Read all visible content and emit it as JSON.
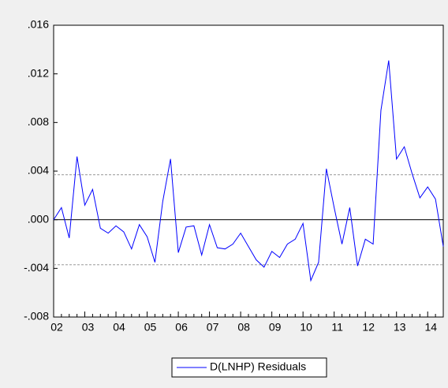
{
  "chart_data": {
    "type": "line",
    "categories": [
      "02",
      null,
      null,
      null,
      "03",
      null,
      null,
      null,
      "04",
      null,
      null,
      null,
      "05",
      null,
      null,
      null,
      "06",
      null,
      null,
      null,
      "07",
      null,
      null,
      null,
      "08",
      null,
      null,
      null,
      "09",
      null,
      null,
      null,
      "10",
      null,
      null,
      null,
      "11",
      null,
      null,
      null,
      "12",
      null,
      null,
      null,
      "13",
      null,
      null,
      null,
      "14",
      null,
      null
    ],
    "series": [
      {
        "name": "D(LNHP) Residuals",
        "color": "#0000ff",
        "values": [
          0.0,
          0.001,
          -0.0015,
          0.0052,
          0.0012,
          0.0025,
          -0.0007,
          -0.0011,
          -0.0005,
          -0.001,
          -0.0024,
          -0.0004,
          -0.0014,
          -0.0035,
          0.0015,
          0.005,
          -0.0027,
          -0.0006,
          -0.0005,
          -0.0029,
          -0.0004,
          -0.0023,
          -0.0024,
          -0.002,
          -0.0011,
          -0.0022,
          -0.0033,
          -0.0039,
          -0.0026,
          -0.0031,
          -0.002,
          -0.0016,
          -0.0003,
          -0.005,
          -0.0035,
          0.0042,
          0.001,
          -0.002,
          0.001,
          -0.0038,
          -0.0016,
          -0.002,
          0.009,
          0.0131,
          0.005,
          0.006,
          0.0038,
          0.0018,
          0.0027,
          0.0017,
          -0.0022
        ]
      }
    ],
    "ylim": [
      -0.008,
      0.016
    ],
    "yticks": [
      {
        "value": -0.008,
        "label": "-.008"
      },
      {
        "value": -0.004,
        "label": "-.004"
      },
      {
        "value": 0.0,
        "label": ".000"
      },
      {
        "value": 0.004,
        "label": ".004"
      },
      {
        "value": 0.008,
        "label": ".008"
      },
      {
        "value": 0.012,
        "label": ".012"
      },
      {
        "value": 0.016,
        "label": ".016"
      }
    ],
    "reference_lines": [
      0.0037,
      -0.0037
    ],
    "legend": "bottom"
  }
}
